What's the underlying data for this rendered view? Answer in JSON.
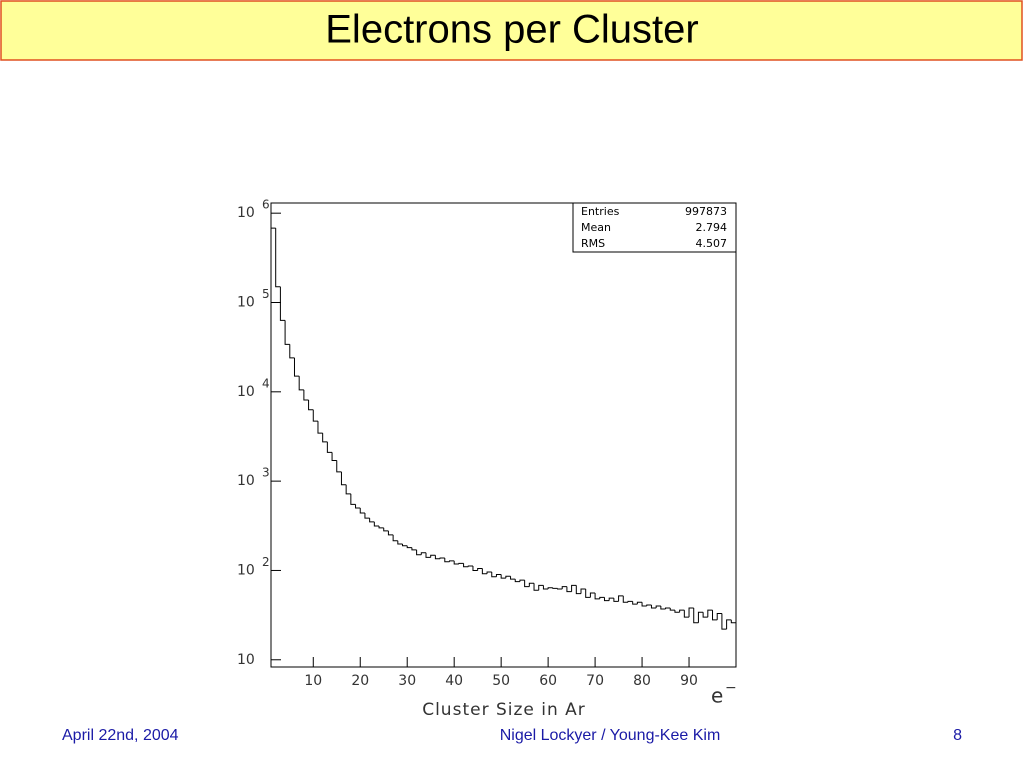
{
  "chart_data": {
    "type": "histogram",
    "title": "Electrons per Cluster",
    "xlabel": "Cluster Size in Ar",
    "unit": "e",
    "unit_sup": "−",
    "bins": [
      1,
      2,
      3,
      4,
      5,
      6,
      7,
      8,
      9,
      10,
      11,
      12,
      13,
      14,
      15,
      16,
      17,
      18,
      19,
      20,
      21,
      22,
      23,
      24,
      25,
      26,
      27,
      28,
      29,
      30,
      31,
      32,
      33,
      34,
      35,
      36,
      37,
      38,
      39,
      40,
      41,
      42,
      43,
      44,
      45,
      46,
      47,
      48,
      49,
      50,
      51,
      52,
      53,
      54,
      55,
      56,
      57,
      58,
      59,
      60,
      61,
      62,
      63,
      64,
      65,
      66,
      67,
      68,
      69,
      70,
      71,
      72,
      73,
      74,
      75,
      76,
      77,
      78,
      79,
      80,
      81,
      82,
      83,
      84,
      85,
      86,
      87,
      88,
      89,
      90,
      91,
      92,
      93,
      94,
      95,
      96,
      97,
      98,
      99,
      100
    ],
    "values": [
      680000,
      150000,
      63000,
      34000,
      24000,
      15000,
      10500,
      8100,
      6300,
      4700,
      3450,
      2750,
      2100,
      1700,
      1270,
      910,
      720,
      550,
      500,
      440,
      385,
      350,
      315,
      300,
      277,
      250,
      215,
      198,
      189,
      180,
      170,
      150,
      158,
      140,
      148,
      135,
      138,
      125,
      128,
      118,
      120,
      110,
      112,
      100,
      105,
      92,
      96,
      85,
      90,
      82,
      86,
      80,
      75,
      78,
      66,
      72,
      60,
      68,
      62,
      64,
      63,
      62,
      66,
      58,
      68,
      55,
      62,
      50,
      56,
      48,
      50,
      46,
      49,
      45,
      52,
      44,
      45,
      42,
      44,
      40,
      41,
      38,
      40,
      37,
      38,
      36,
      34,
      36,
      30,
      38,
      26,
      34,
      30,
      36,
      28,
      33,
      22,
      28,
      26
    ],
    "color": "#000000",
    "xlim": [
      1,
      100
    ],
    "xticks": [
      10,
      20,
      30,
      40,
      50,
      60,
      70,
      80,
      90
    ],
    "ylim": [
      8.3,
      1300000
    ],
    "log_y": true,
    "yticks": [
      10,
      {
        "value": 100,
        "label": "10",
        "sup": "2"
      },
      {
        "value": 1000,
        "label": "10",
        "sup": "3"
      },
      {
        "value": 10000,
        "label": "10",
        "sup": "4"
      },
      {
        "value": 100000,
        "label": "10",
        "sup": "5"
      },
      {
        "value": 1000000,
        "label": "10",
        "sup": "6"
      }
    ],
    "stats": [
      {
        "label": "Entries",
        "value": 997873
      },
      {
        "label": "Mean",
        "value": 2.794
      },
      {
        "label": "RMS",
        "value": 4.507
      }
    ]
  },
  "footer": {
    "date": "April 22nd, 2004",
    "authors": "Nigel Lockyer / Young-Kee Kim",
    "page": 8
  }
}
